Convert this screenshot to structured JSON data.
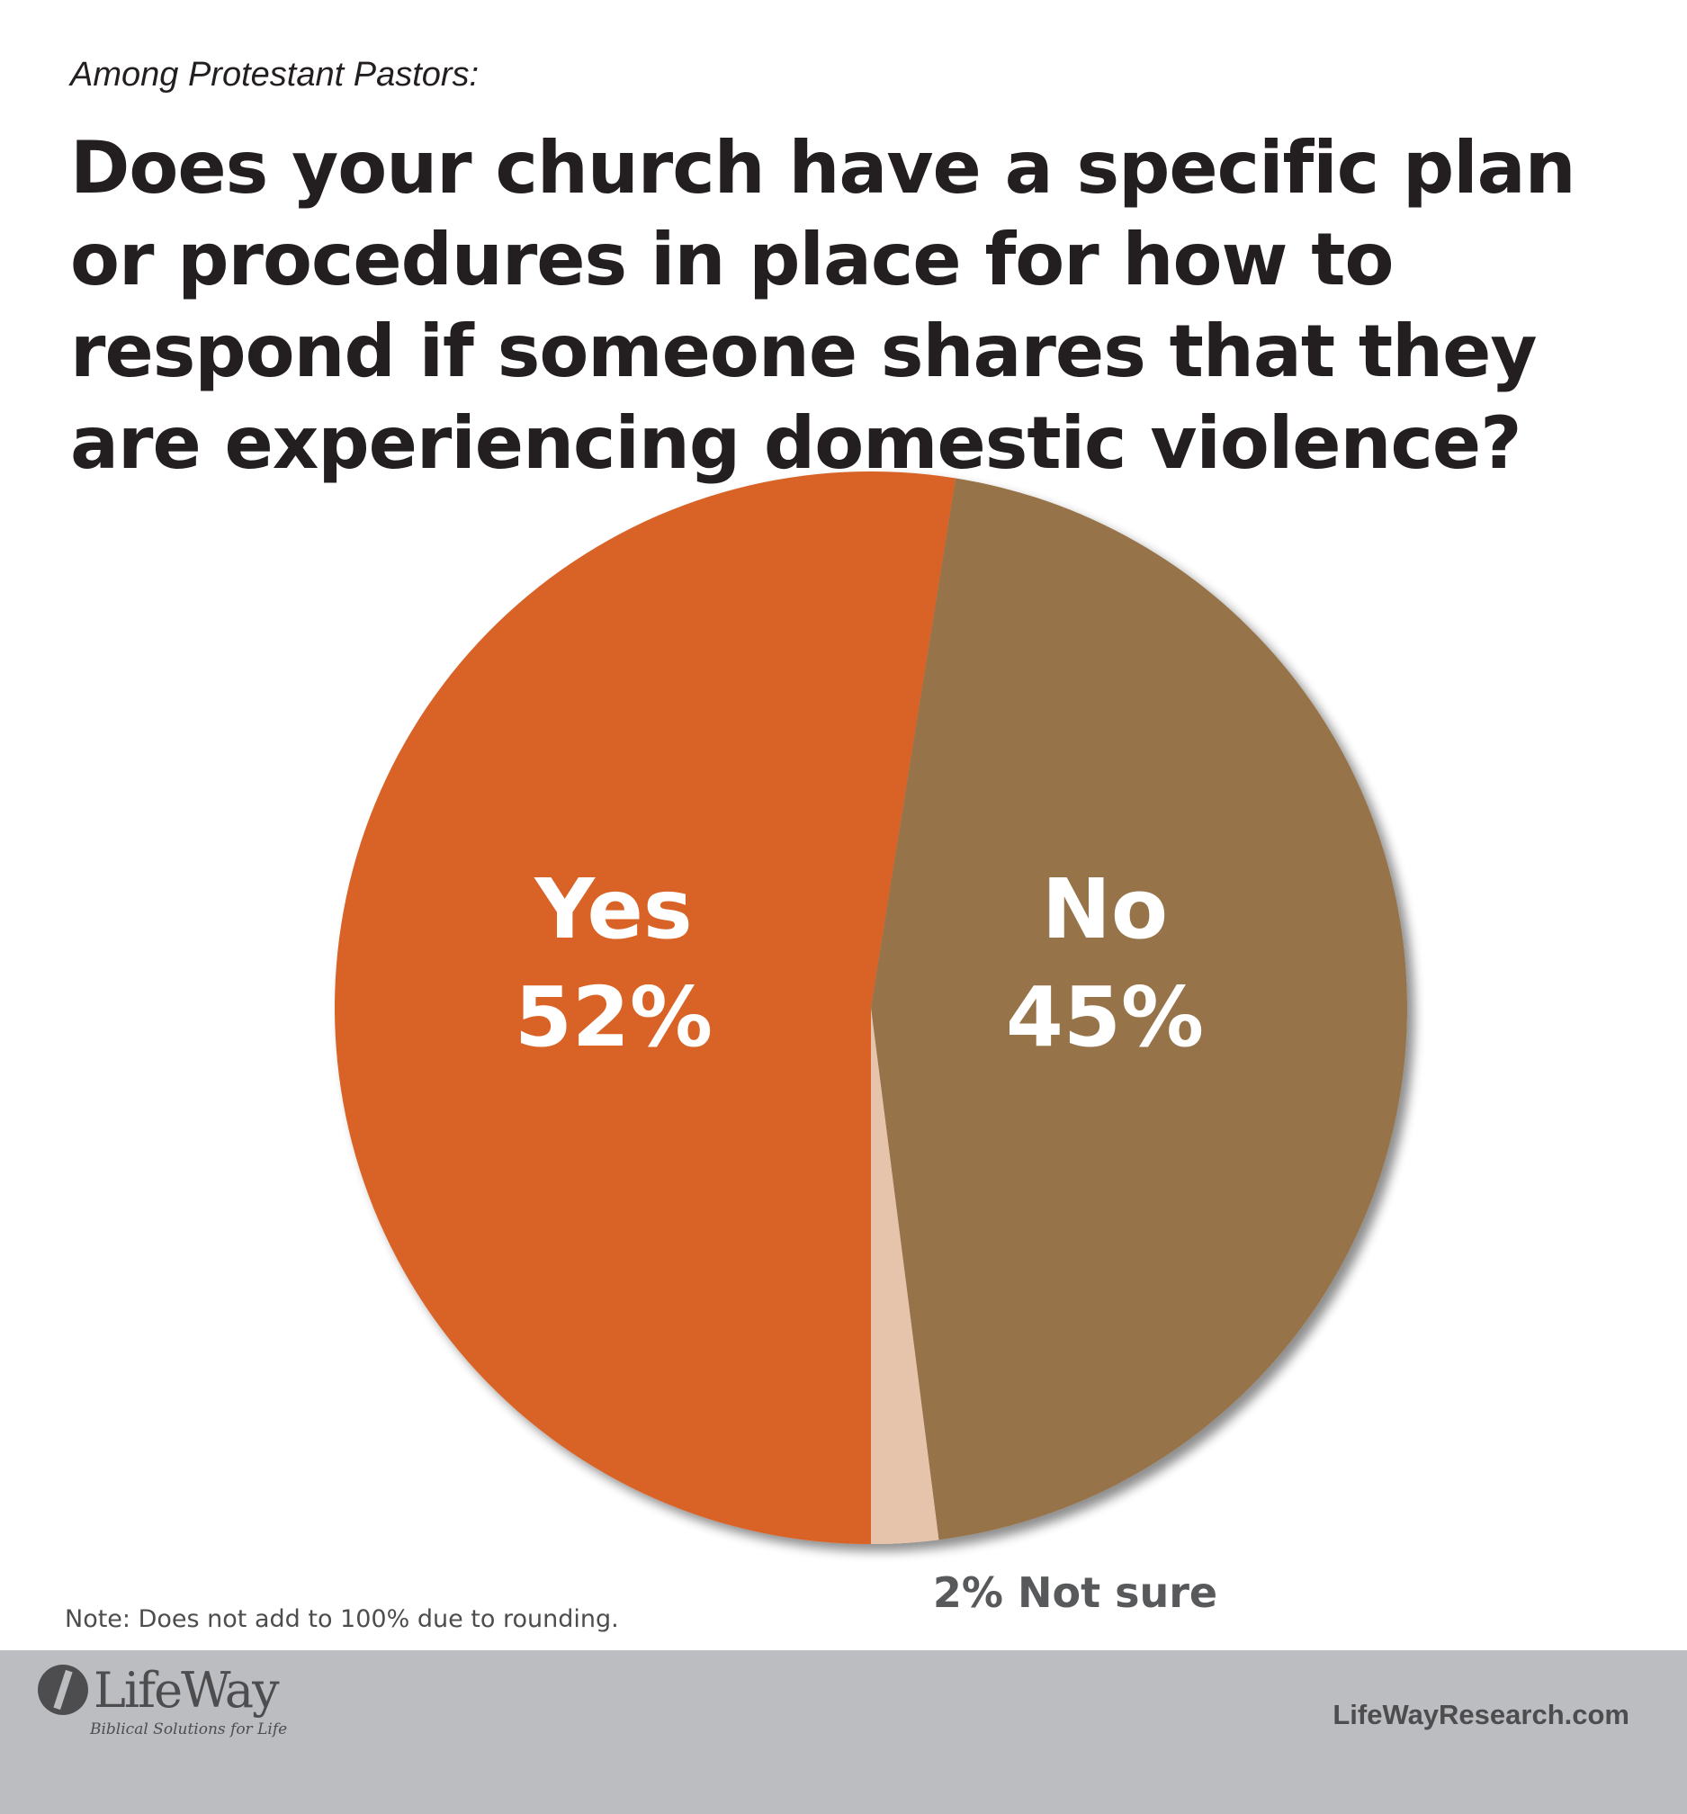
{
  "header": {
    "subtitle": "Among Protestant Pastors:",
    "title": "Does your church have a specific plan or procedures in place for how to respond if someone shares that they are experiencing domestic violence?"
  },
  "chart_data": {
    "type": "pie",
    "title": "Does your church have a specific plan or procedures in place for how to respond if someone shares that they are experiencing domestic violence?",
    "slices": [
      {
        "label": "Yes",
        "value": 52,
        "display": "52%",
        "color": "#d96428"
      },
      {
        "label": "No",
        "value": 45,
        "display": "45%",
        "color": "#967349"
      },
      {
        "label": "Not sure",
        "value": 2,
        "display": "2% Not sure",
        "color": "#e6c4ab"
      }
    ],
    "note": "Note: Does not add to 100% due to rounding."
  },
  "footer": {
    "logo_text": "LifeWay",
    "logo_tagline": "Biblical Solutions for Life",
    "site": "LifeWayResearch.com",
    "background_color": "#bcbdc0"
  },
  "label_color": "#ffffff",
  "outside_label_color": "#58595b"
}
